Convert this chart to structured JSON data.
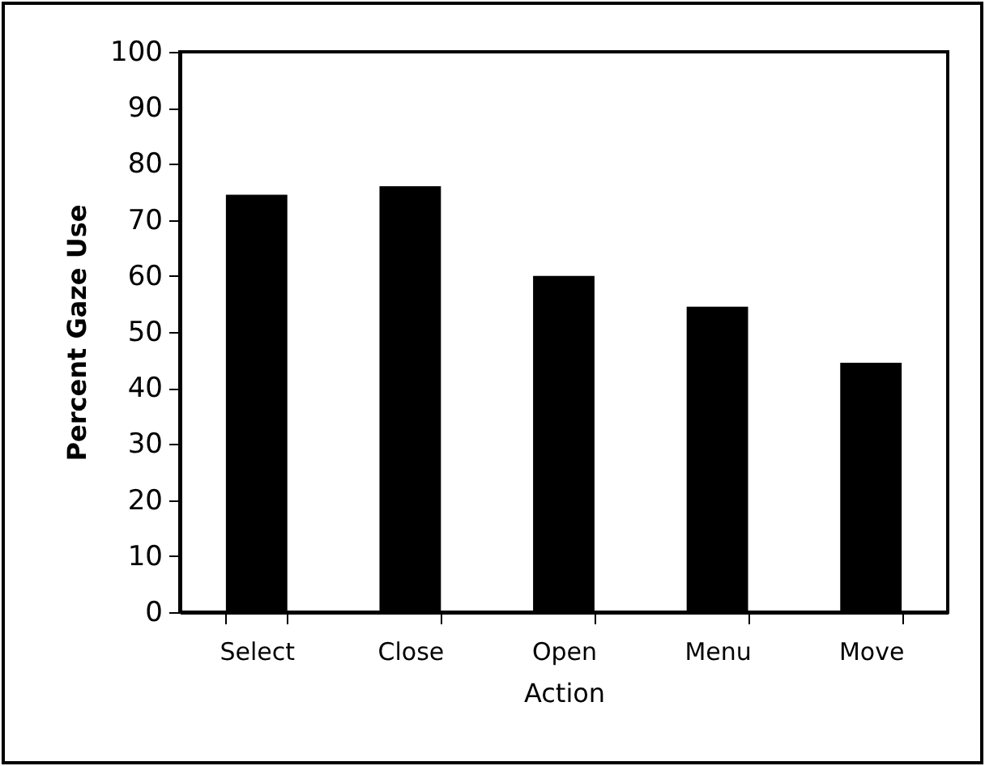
{
  "chart_data": {
    "type": "bar",
    "xlabel": "Action",
    "ylabel": "Percent Gaze Use",
    "categories": [
      "Select",
      "Close",
      "Open",
      "Menu",
      "Move"
    ],
    "values": [
      74.5,
      76,
      60,
      54.5,
      44.5
    ],
    "color": "#000000",
    "ylim": [
      0,
      100
    ],
    "yticks": [
      0,
      10,
      20,
      30,
      40,
      50,
      60,
      70,
      80,
      90,
      100
    ],
    "grid": false
  }
}
